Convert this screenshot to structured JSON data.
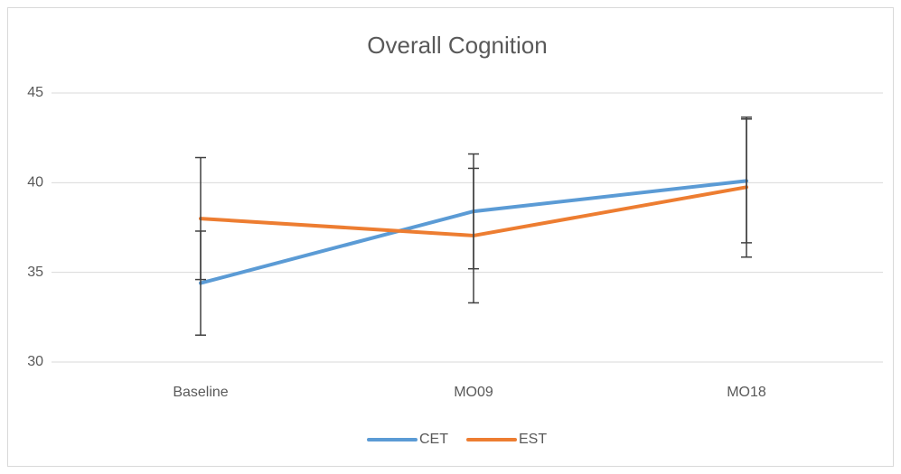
{
  "chart_data": {
    "type": "line",
    "title": "Overall Cognition",
    "categories": [
      "Baseline",
      "MO09",
      "MO18"
    ],
    "series": [
      {
        "name": "CET",
        "color": "#5b9bd5",
        "values": [
          34.4,
          38.4,
          40.1
        ],
        "errors": [
          2.9,
          3.2,
          3.45
        ]
      },
      {
        "name": "EST",
        "color": "#ed7d31",
        "values": [
          38.0,
          37.05,
          39.75
        ],
        "errors": [
          3.4,
          3.75,
          3.9
        ]
      }
    ],
    "error_bar_color": "#404040",
    "ylim": [
      30,
      45
    ],
    "yticks": [
      30,
      35,
      40,
      45
    ],
    "grid": true,
    "legend": "bottom"
  }
}
